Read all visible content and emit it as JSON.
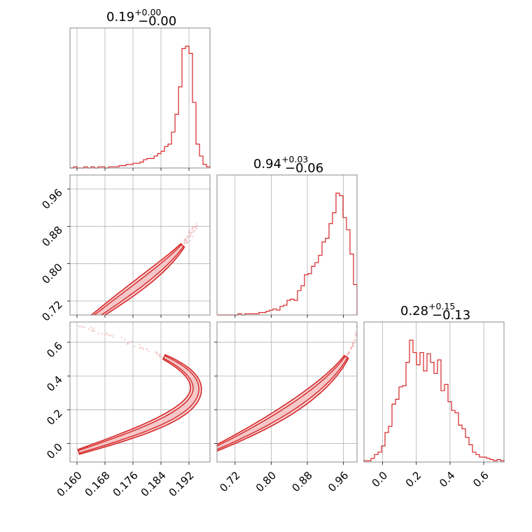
{
  "colors": {
    "accent": "#d62728",
    "fill": "#f4c7c8",
    "scatter": "#f0b3b3",
    "grid": "#b0b0b0",
    "frame": "#7f7f7f"
  },
  "chart_data": [
    {
      "type": "histogram",
      "param_index": 0,
      "title": {
        "value": "0.19",
        "plus": "+0.00",
        "minus": "−0.00"
      },
      "xlim": [
        0.158,
        0.198
      ],
      "xticks": [
        "0.160",
        "0.168",
        "0.176",
        "0.184",
        "0.192"
      ],
      "bin_edges_start": 0.158,
      "bin_width": 0.001,
      "counts": [
        0,
        1,
        0,
        0,
        1,
        0,
        1,
        0,
        1,
        1,
        0,
        1,
        1,
        1,
        2,
        2,
        3,
        3,
        4,
        4,
        5,
        7,
        8,
        8,
        10,
        12,
        14,
        18,
        20,
        30,
        45,
        68,
        100,
        102,
        96,
        55,
        20,
        10,
        3,
        1
      ]
    },
    {
      "type": "histogram",
      "param_index": 1,
      "title": {
        "value": "0.94",
        "plus": "+0.03",
        "minus": "−0.06"
      },
      "xlim": [
        0.68,
        0.99
      ],
      "xticks": [
        "0.72",
        "0.80",
        "0.88",
        "0.96"
      ],
      "bin_edges_start": 0.68,
      "bin_width": 0.00775,
      "counts": [
        0,
        0,
        0,
        0,
        0,
        0,
        1,
        0,
        1,
        1,
        1,
        1,
        2,
        2,
        3,
        4,
        5,
        4,
        7,
        8,
        12,
        13,
        12,
        20,
        24,
        33,
        34,
        40,
        43,
        49,
        60,
        63,
        75,
        84,
        100,
        98,
        80,
        70,
        50,
        25
      ]
    },
    {
      "type": "histogram",
      "param_index": 2,
      "title": {
        "value": "0.28",
        "plus": "+0.15",
        "minus": "−0.13"
      },
      "xlim": [
        -0.11,
        0.72
      ],
      "xticks": [
        "0.0",
        "0.2",
        "0.4",
        "0.6"
      ],
      "bin_edges_start": -0.11,
      "bin_width": 0.02075,
      "counts": [
        1,
        1,
        3,
        6,
        8,
        13,
        24,
        29,
        47,
        51,
        61,
        62,
        81,
        99,
        89,
        79,
        89,
        74,
        88,
        81,
        72,
        83,
        58,
        63,
        49,
        42,
        40,
        30,
        27,
        20,
        14,
        8,
        6,
        4,
        4,
        3,
        2,
        1,
        2,
        1
      ]
    },
    {
      "type": "contour",
      "panel": "p1 vs p0",
      "xlim": [
        0.158,
        0.198
      ],
      "ylim": [
        0.69,
        0.99
      ],
      "xticks": [],
      "yticks": [
        "0.72",
        "0.80",
        "0.88",
        "0.96"
      ],
      "curve": {
        "t_start": 0.55,
        "t_end": 1.0
      }
    },
    {
      "type": "contour",
      "panel": "p2 vs p0",
      "xlim": [
        0.158,
        0.198
      ],
      "ylim": [
        -0.11,
        0.72
      ],
      "xticks": [
        "0.160",
        "0.168",
        "0.176",
        "0.184",
        "0.192"
      ],
      "yticks": [
        "0.0",
        "0.2",
        "0.4",
        "0.6"
      ],
      "curve": {
        "t_start": 0.0,
        "t_end": 1.0
      }
    },
    {
      "type": "contour",
      "panel": "p2 vs p1",
      "xlim": [
        0.68,
        0.99
      ],
      "ylim": [
        -0.11,
        0.72
      ],
      "xticks": [
        "0.72",
        "0.80",
        "0.88",
        "0.96"
      ],
      "yticks": [],
      "curve": {
        "t_start": 0.0,
        "t_end": 1.0
      }
    }
  ]
}
